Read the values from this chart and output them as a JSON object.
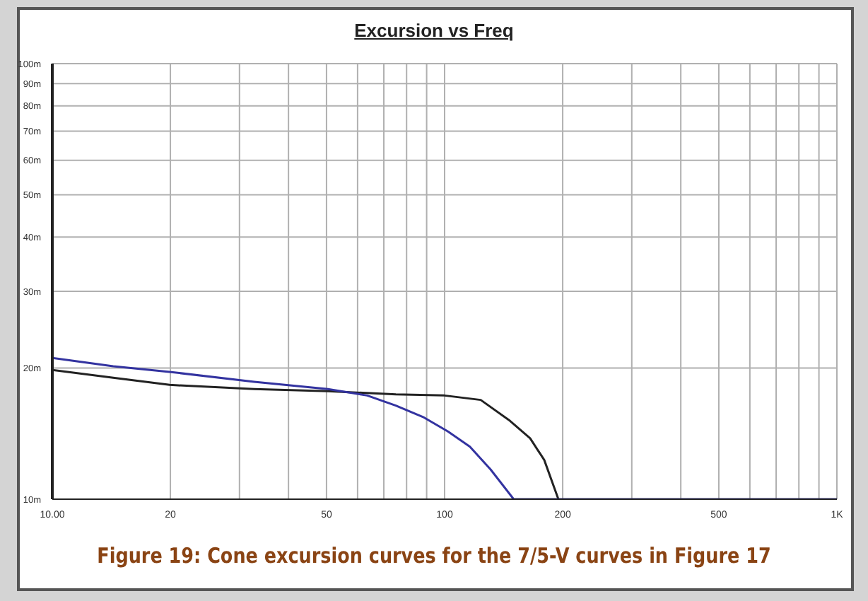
{
  "chart_data": {
    "type": "line",
    "title": "Excursion vs Freq",
    "annotations": [
      "Figure 19: Cone excursion curves for the 7/5-V curves in Figure 17"
    ],
    "log": "xy",
    "grid": true,
    "marker": "none",
    "line_style": "solid",
    "xlim": [
      10,
      1000
    ],
    "ylim": [
      10,
      100
    ],
    "xticks": [
      {
        "value": 10,
        "label": "10.00"
      },
      {
        "value": 20,
        "label": "20"
      },
      {
        "value": 30,
        "label": null
      },
      {
        "value": 40,
        "label": null
      },
      {
        "value": 50,
        "label": "50"
      },
      {
        "value": 60,
        "label": null
      },
      {
        "value": 70,
        "label": null
      },
      {
        "value": 80,
        "label": null
      },
      {
        "value": 90,
        "label": null
      },
      {
        "value": 100,
        "label": "100"
      },
      {
        "value": 200,
        "label": "200"
      },
      {
        "value": 300,
        "label": null
      },
      {
        "value": 400,
        "label": null
      },
      {
        "value": 500,
        "label": "500"
      },
      {
        "value": 600,
        "label": null
      },
      {
        "value": 700,
        "label": null
      },
      {
        "value": 800,
        "label": null
      },
      {
        "value": 900,
        "label": null
      },
      {
        "value": 1000,
        "label": "1K"
      }
    ],
    "yticks": [
      {
        "value": 10,
        "label": "10m"
      },
      {
        "value": 20,
        "label": "20m"
      },
      {
        "value": 30,
        "label": "30m"
      },
      {
        "value": 40,
        "label": "40m"
      },
      {
        "value": 50,
        "label": "50m"
      },
      {
        "value": 60,
        "label": "60m"
      },
      {
        "value": 70,
        "label": "70m"
      },
      {
        "value": 80,
        "label": "80m"
      },
      {
        "value": 90,
        "label": "90m"
      },
      {
        "value": 100,
        "label": "100m"
      }
    ],
    "series": [
      {
        "color": "#222222",
        "x": [
          10,
          14.3,
          19.9,
          32.7,
          50.4,
          75.1,
          100,
          123.6,
          145.8,
          165.2,
          179.5,
          195
        ],
        "values": [
          19.8,
          19.0,
          18.3,
          17.9,
          17.7,
          17.4,
          17.3,
          16.9,
          15.2,
          13.8,
          12.3,
          10
        ]
      },
      {
        "color": "#3333a0",
        "x": [
          10,
          14.3,
          19.9,
          32.7,
          50.4,
          63.5,
          75.1,
          88.6,
          102,
          116,
          131,
          150,
          1000
        ],
        "values": [
          21.1,
          20.2,
          19.6,
          18.6,
          17.9,
          17.3,
          16.4,
          15.4,
          14.3,
          13.2,
          11.7,
          10,
          10
        ]
      }
    ]
  }
}
